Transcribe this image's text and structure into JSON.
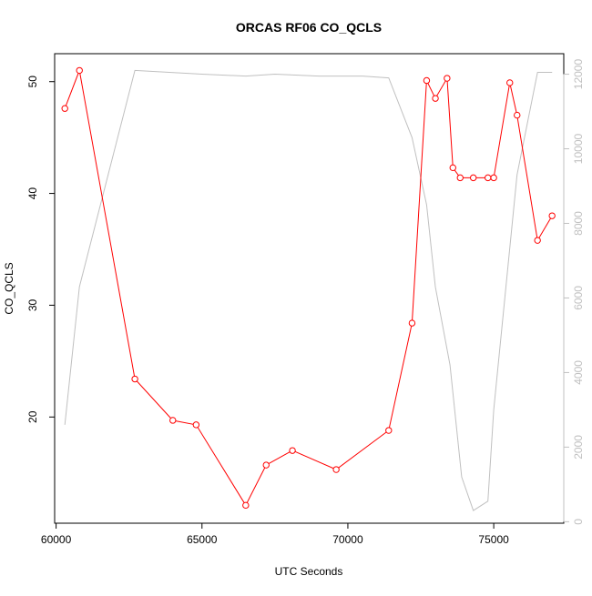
{
  "chart_data": {
    "type": "line",
    "title": "ORCAS RF06 CO_QCLS",
    "xlabel": "UTC Seconds",
    "ylabel": "CO_QCLS",
    "xlim": [
      59950,
      77400
    ],
    "ylim": [
      10.5,
      52.5
    ],
    "y2lim": [
      -40,
      12550
    ],
    "x_ticks": [
      60000,
      65000,
      70000,
      75000
    ],
    "x_tick_labels": [
      "60000",
      "65000",
      "70000",
      "75000"
    ],
    "y_ticks": [
      20,
      30,
      40,
      50
    ],
    "y_tick_labels": [
      "20",
      "30",
      "40",
      "50"
    ],
    "y2_ticks": [
      0,
      2000,
      4000,
      6000,
      8000,
      10000,
      12000
    ],
    "y2_tick_labels": [
      "0",
      "2000",
      "4000",
      "6000",
      "8000",
      "10000",
      "12000"
    ],
    "grid": false,
    "series": [
      {
        "role": "co",
        "axis": "left",
        "color": "#ff0000",
        "marker": "open-circle",
        "x": [
          60300,
          60800,
          62700,
          64000,
          64800,
          66500,
          67200,
          68100,
          69600,
          71400,
          72200,
          72700,
          73000,
          73400,
          73600,
          73850,
          74300,
          74800,
          75000,
          75550,
          75800,
          76500,
          77000
        ],
        "y": [
          47.6,
          51.0,
          23.4,
          19.7,
          19.3,
          12.1,
          15.7,
          17.0,
          15.3,
          18.8,
          28.4,
          50.1,
          48.5,
          50.3,
          42.3,
          41.4,
          41.4,
          41.4,
          41.4,
          49.9,
          47.0,
          35.8,
          38.0
        ]
      },
      {
        "role": "altitude",
        "axis": "right",
        "color": "#c0c0c0",
        "marker": "none",
        "x": [
          60300,
          60800,
          62700,
          65000,
          66500,
          67500,
          69000,
          70500,
          71400,
          72200,
          72700,
          73000,
          73500,
          73900,
          74300,
          74800,
          75000,
          75800,
          76500,
          77000
        ],
        "y": [
          2600,
          6300,
          12100,
          12000,
          11950,
          12000,
          11950,
          11950,
          11900,
          10300,
          8500,
          6300,
          4200,
          1200,
          300,
          550,
          3000,
          9300,
          12050,
          12050
        ]
      }
    ]
  }
}
